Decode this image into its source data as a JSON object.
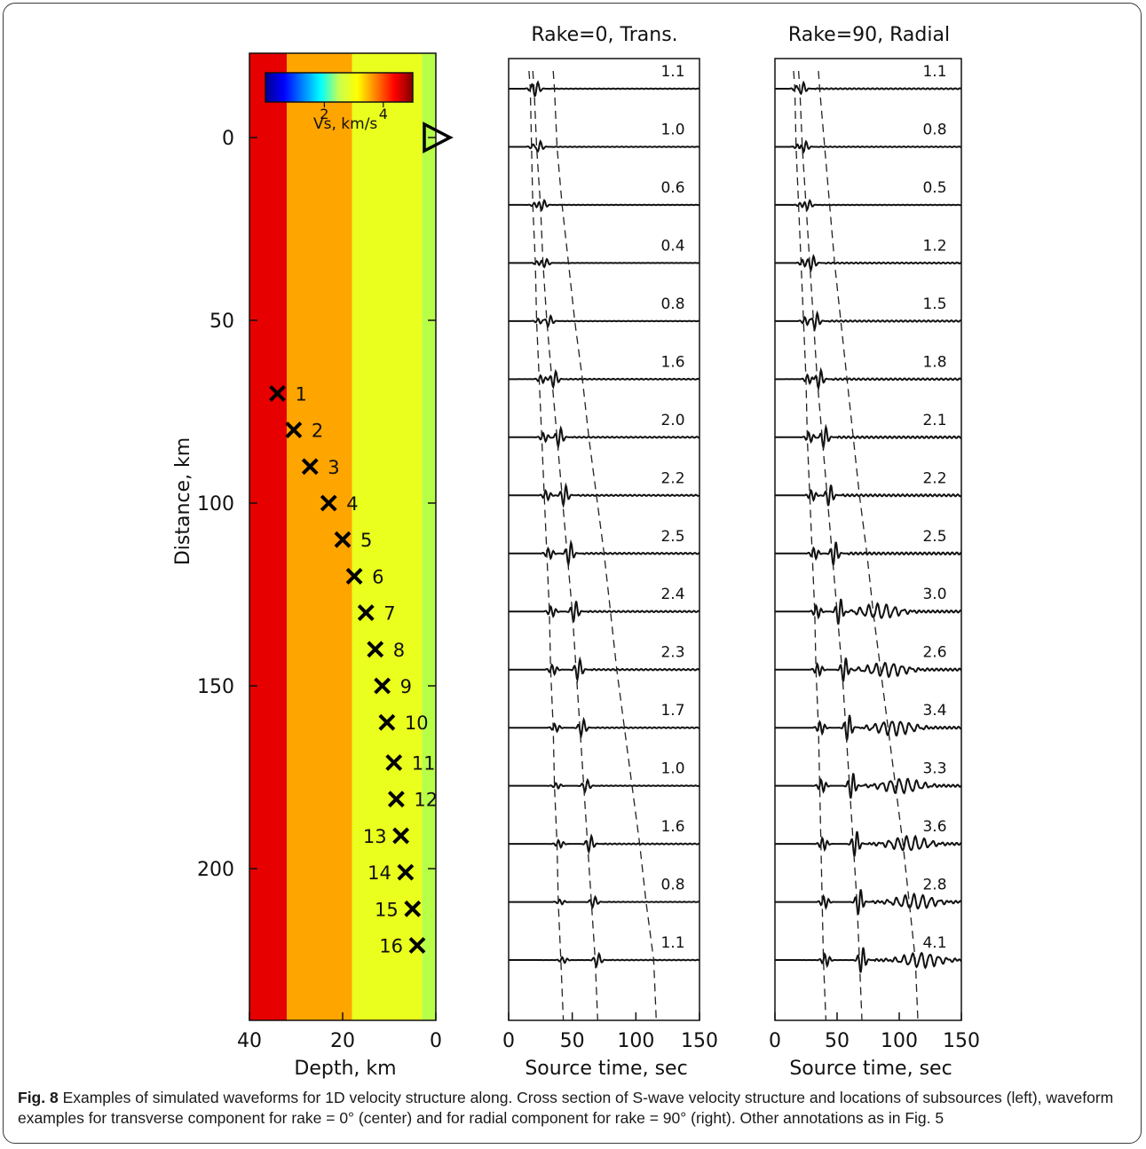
{
  "chart_data": [
    {
      "type": "heatmap",
      "panel": "left",
      "xlabel": "Depth, km",
      "ylabel": "Distance, km",
      "xlim": [
        40,
        0
      ],
      "ylim": [
        245,
        -23
      ],
      "xticks": [
        "40",
        "20",
        "0"
      ],
      "xtick_values": [
        40,
        20,
        0
      ],
      "yticks": [
        "0",
        "50",
        "100",
        "150",
        "200"
      ],
      "ytick_values": [
        0,
        50,
        100,
        150,
        200
      ],
      "layers": [
        {
          "depth_top": 40,
          "depth_bottom": 32,
          "vs": 4.6,
          "color": "#e60000"
        },
        {
          "depth_top": 32,
          "depth_bottom": 18,
          "vs": 3.6,
          "color": "#ffa500"
        },
        {
          "depth_top": 18,
          "depth_bottom": 3,
          "vs": 3.0,
          "color": "#eaff1e"
        },
        {
          "depth_top": 3,
          "depth_bottom": 0,
          "vs": 2.6,
          "color": "#b8ff48"
        }
      ],
      "colorbar": {
        "label": "Vs, km/s",
        "ticks": [
          "2",
          "4"
        ],
        "tick_values": [
          2,
          4
        ],
        "range": [
          0,
          5
        ]
      },
      "station": {
        "depth": 0,
        "distance": 0
      },
      "subsources": [
        {
          "label": "1",
          "depth": 34,
          "distance": 70
        },
        {
          "label": "2",
          "depth": 30.5,
          "distance": 80
        },
        {
          "label": "3",
          "depth": 27,
          "distance": 90
        },
        {
          "label": "4",
          "depth": 23,
          "distance": 100
        },
        {
          "label": "5",
          "depth": 20,
          "distance": 110
        },
        {
          "label": "6",
          "depth": 17.5,
          "distance": 120
        },
        {
          "label": "7",
          "depth": 15,
          "distance": 130
        },
        {
          "label": "8",
          "depth": 13,
          "distance": 140
        },
        {
          "label": "9",
          "depth": 11.5,
          "distance": 150
        },
        {
          "label": "10",
          "depth": 10.5,
          "distance": 160
        },
        {
          "label": "11",
          "depth": 9,
          "distance": 171
        },
        {
          "label": "12",
          "depth": 8.5,
          "distance": 181
        },
        {
          "label": "13",
          "depth": 7.5,
          "distance": 191
        },
        {
          "label": "14",
          "depth": 6.5,
          "distance": 201
        },
        {
          "label": "15",
          "depth": 5,
          "distance": 211
        },
        {
          "label": "16",
          "depth": 4,
          "distance": 221
        }
      ]
    },
    {
      "type": "line",
      "panel": "center",
      "title": "Rake=0, Trans.",
      "xlabel": "Source time, sec",
      "xlim": [
        0,
        150
      ],
      "xticks": [
        "0",
        "50",
        "100",
        "150"
      ],
      "xtick_values": [
        0,
        50,
        100,
        150
      ],
      "amplitudes": [
        "1.1",
        "1.0",
        "0.6",
        "0.4",
        "0.8",
        "1.6",
        "2.0",
        "2.2",
        "2.5",
        "2.4",
        "2.3",
        "1.7",
        "1.0",
        "1.6",
        "0.8",
        "1.1"
      ],
      "arrival_times_sec": [
        [
          17,
          20,
          36
        ],
        [
          18,
          22,
          38
        ],
        [
          19,
          25,
          42
        ],
        [
          21,
          27,
          47
        ],
        [
          22,
          30,
          52
        ],
        [
          24,
          34,
          58
        ],
        [
          26,
          38,
          63
        ],
        [
          28,
          42,
          69
        ],
        [
          30,
          46,
          75
        ],
        [
          32,
          50,
          80
        ],
        [
          33,
          53,
          85
        ],
        [
          35,
          56,
          91
        ],
        [
          36,
          59,
          97
        ],
        [
          38,
          62,
          103
        ],
        [
          39,
          65,
          108
        ],
        [
          41,
          68,
          114
        ]
      ]
    },
    {
      "type": "line",
      "panel": "right",
      "title": "Rake=90, Radial",
      "xlabel": "Source time, sec",
      "xlim": [
        0,
        150
      ],
      "xticks": [
        "0",
        "50",
        "100",
        "150"
      ],
      "xtick_values": [
        0,
        50,
        100,
        150
      ],
      "amplitudes": [
        "1.1",
        "0.8",
        "0.5",
        "1.2",
        "1.5",
        "1.8",
        "2.1",
        "2.2",
        "2.5",
        "3.0",
        "2.6",
        "3.4",
        "3.3",
        "3.6",
        "2.8",
        "4.1"
      ],
      "arrival_times_sec": [
        [
          16,
          20,
          36
        ],
        [
          17,
          22,
          40
        ],
        [
          19,
          25,
          44
        ],
        [
          21,
          28,
          48
        ],
        [
          23,
          31,
          53
        ],
        [
          25,
          34,
          58
        ],
        [
          26,
          38,
          63
        ],
        [
          28,
          42,
          68
        ],
        [
          30,
          46,
          74
        ],
        [
          32,
          50,
          79
        ],
        [
          33,
          54,
          85
        ],
        [
          35,
          57,
          91
        ],
        [
          36,
          60,
          97
        ],
        [
          37,
          63,
          103
        ],
        [
          38,
          66,
          108
        ],
        [
          39,
          68,
          113
        ]
      ]
    }
  ],
  "caption": {
    "fig_label": "Fig. 8",
    "text": "Examples of simulated waveforms for 1D velocity structure along. Cross section of S-wave velocity structure and locations of subsources (left), waveform examples for transverse component for rake = 0° (center) and for radial component for rake = 90° (right). Other annotations as in Fig. 5"
  }
}
